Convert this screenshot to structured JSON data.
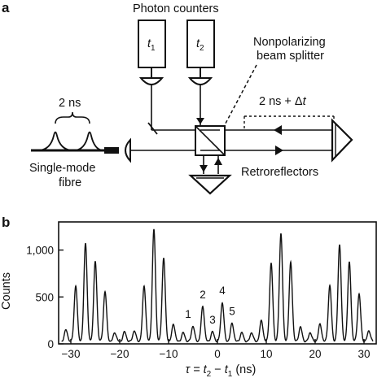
{
  "panel_a": {
    "letter": "a",
    "labels": {
      "photon_counters": "Photon counters",
      "counter_1": "t",
      "counter_1_sub": "1",
      "counter_2": "t",
      "counter_2_sub": "2",
      "splitter_line1": "Nonpolarizing",
      "splitter_line2": "beam splitter",
      "pulse_spacing": "2 ns",
      "delay_prefix": "2 ns + Δ",
      "delay_var": "t",
      "fibre_line1": "Single-mode",
      "fibre_line2": "fibre",
      "retroreflectors": "Retroreflectors"
    }
  },
  "panel_b": {
    "letter": "b"
  },
  "chart_data": {
    "type": "line",
    "title": "",
    "ylabel": "Counts",
    "xlabel_parts": [
      "τ = ",
      "t",
      "2",
      " − ",
      "t",
      "1",
      "  (ns)"
    ],
    "xlim": [
      -32.5,
      32.5
    ],
    "ylim": [
      0,
      1300
    ],
    "xticks": [
      -30,
      -20,
      -10,
      0,
      10,
      20,
      30
    ],
    "yticks": [
      0,
      500,
      1000
    ],
    "ytick_labels": [
      "0",
      "500",
      "1,000"
    ],
    "peak_spacing_ns": 2,
    "peaks": {
      "x": [
        -31,
        -29,
        -27,
        -25,
        -23,
        -21,
        -19,
        -17,
        -15,
        -13,
        -11,
        -9,
        -7,
        -5,
        -3,
        -1,
        1,
        3,
        5,
        7,
        9,
        11,
        13,
        15,
        17,
        19,
        21,
        23,
        25,
        27,
        29,
        31
      ],
      "y": [
        150,
        620,
        1080,
        880,
        560,
        120,
        130,
        140,
        620,
        1220,
        920,
        210,
        120,
        190,
        400,
        130,
        440,
        220,
        120,
        120,
        250,
        860,
        1180,
        870,
        180,
        120,
        210,
        620,
        1060,
        870,
        530,
        140
      ]
    },
    "annotations": [
      {
        "label": "1",
        "x": -5
      },
      {
        "label": "2",
        "x": -3
      },
      {
        "label": "3",
        "x": -1
      },
      {
        "label": "4",
        "x": 1
      },
      {
        "label": "5",
        "x": 3
      }
    ]
  }
}
